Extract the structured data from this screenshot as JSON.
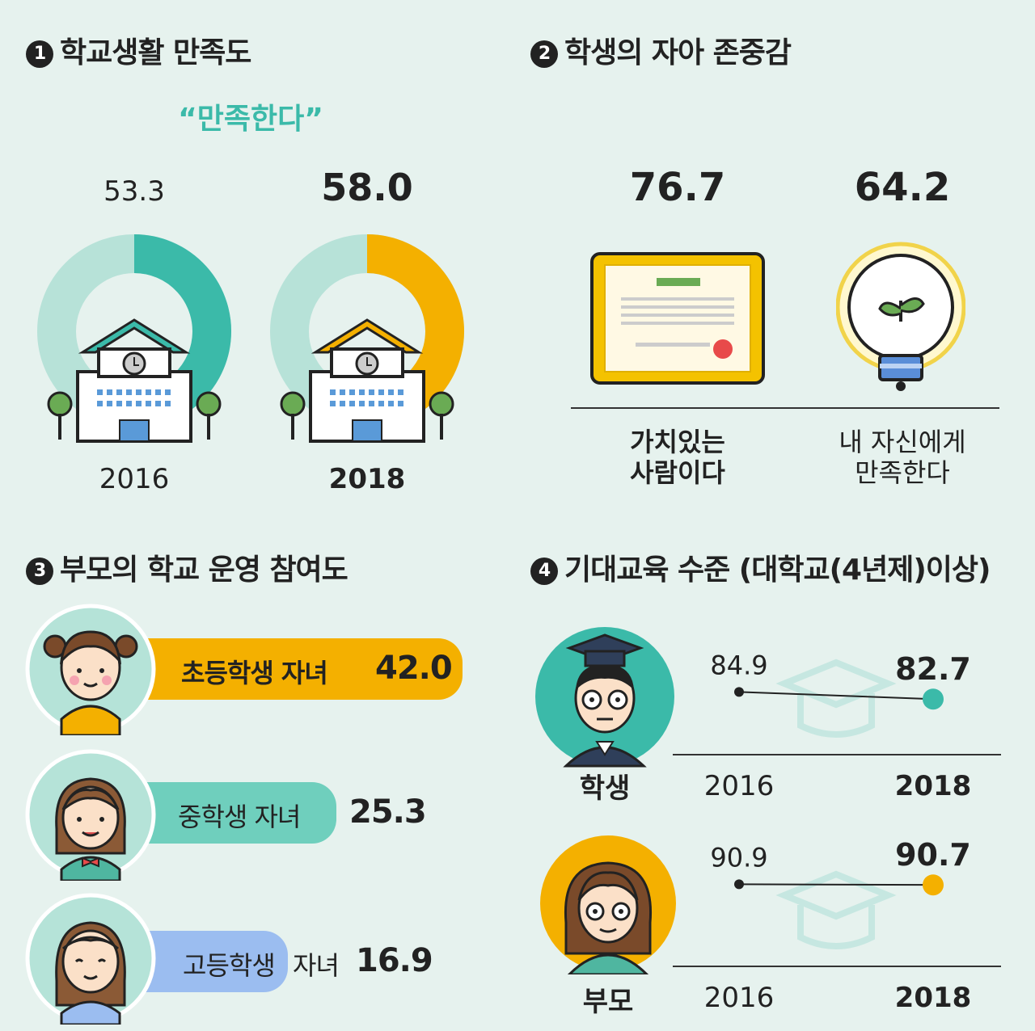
{
  "colors": {
    "background": "#e6f2ee",
    "teal": "#3bbaa9",
    "teal_light": "#b7e2d8",
    "orange": "#f4b000",
    "blue_light": "#9bbdf0",
    "dark": "#222222"
  },
  "section1": {
    "badge": "1",
    "title": "학교생활 만족도",
    "subtitle": "“만족한다”",
    "chart_data": {
      "type": "donut",
      "title": "학교생활 만족도",
      "categories": [
        "2016",
        "2018"
      ],
      "values": [
        53.3,
        58.0
      ],
      "value_labels": [
        "53.3",
        "58.0"
      ],
      "max": 100,
      "colors": [
        "#3bbaa9",
        "#f4b000"
      ]
    }
  },
  "section2": {
    "badge": "2",
    "title": "학생의 자아 존중감",
    "chart_data": {
      "type": "bar",
      "title": "학생의 자아 존중감",
      "categories": [
        "가치있는 사람이다",
        "내 자신에게 만족한다"
      ],
      "values": [
        76.7,
        64.2
      ],
      "value_labels": [
        "76.7",
        "64.2"
      ]
    },
    "labels": [
      {
        "line1": "가치있는",
        "line2": "사람이다"
      },
      {
        "line1": "내 자신에게",
        "line2": "만족한다"
      }
    ],
    "icons": [
      "certificate-icon",
      "lightbulb-sprout-icon"
    ]
  },
  "section3": {
    "badge": "3",
    "title": "부모의 학교 운영 참여도",
    "chart_data": {
      "type": "bar",
      "title": "부모의 학교 운영 참여도",
      "categories": [
        "초등학생 자녀",
        "중학생 자녀",
        "고등학생 자녀"
      ],
      "values": [
        42.0,
        25.3,
        16.9
      ],
      "value_labels": [
        "42.0",
        "25.3",
        "16.9"
      ],
      "colors": [
        "#f4b000",
        "#6fcfbd",
        "#9bbdf0"
      ]
    },
    "bar_labels": [
      "초등학생 자녀",
      "중학생 자녀",
      "고등학생"
    ],
    "bar_label_suffix": "자녀",
    "icons": [
      "elementary-girl-icon",
      "middle-school-girl-icon",
      "high-school-girl-icon"
    ]
  },
  "section4": {
    "badge": "4",
    "title": "기대교육 수준 (대학교(4년제)이상)",
    "chart_data": [
      {
        "type": "line",
        "title": "학생",
        "x": [
          "2016",
          "2018"
        ],
        "y": [
          84.9,
          82.7
        ],
        "value_labels": [
          "84.9",
          "82.7"
        ],
        "ylim": [
          80,
          95
        ]
      },
      {
        "type": "line",
        "title": "부모",
        "x": [
          "2016",
          "2018"
        ],
        "y": [
          90.9,
          90.7
        ],
        "value_labels": [
          "90.9",
          "90.7"
        ],
        "ylim": [
          80,
          95
        ]
      }
    ],
    "groups": [
      {
        "label": "학생",
        "icon": "graduate-student-icon",
        "color": "#3bbaa9"
      },
      {
        "label": "부모",
        "icon": "parent-woman-icon",
        "color": "#f4b000"
      }
    ]
  }
}
